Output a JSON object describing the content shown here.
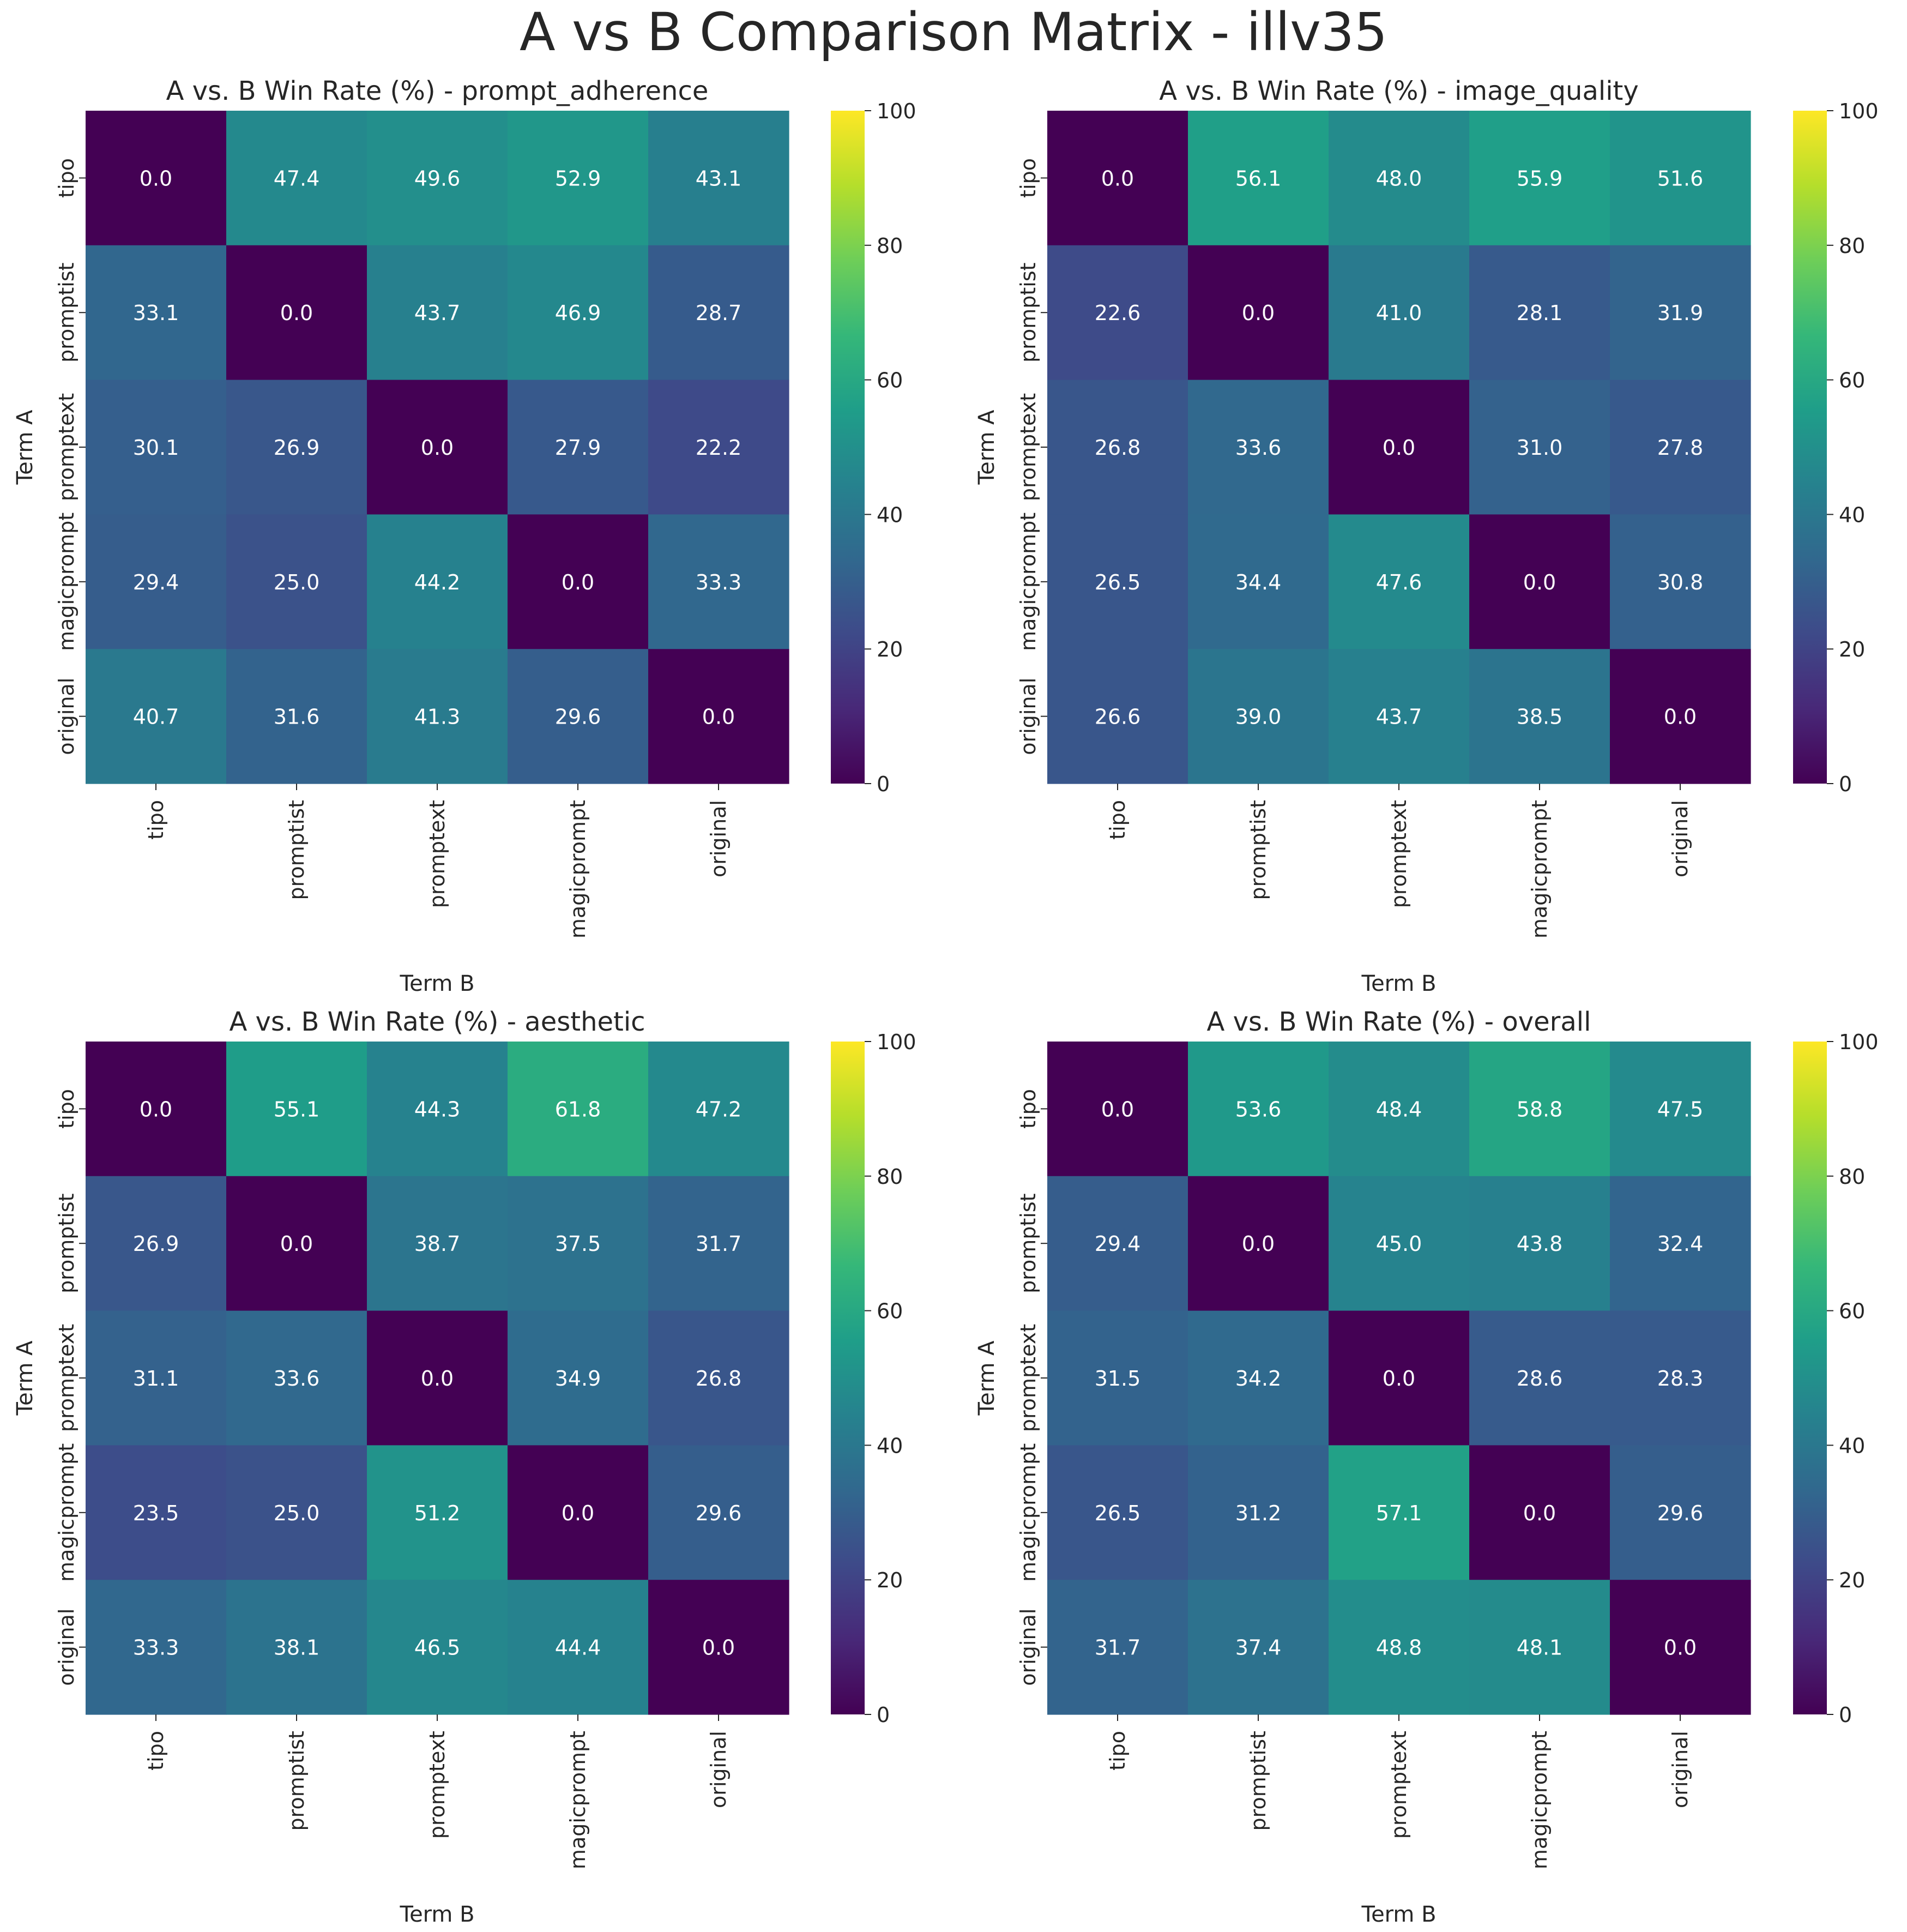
{
  "figure_title": "A vs B Comparison Matrix - illv35",
  "colors": {
    "text": "#262626",
    "cell_text": "#ffffff",
    "colormap": "viridis",
    "viridis_stops": [
      "#440154",
      "#482878",
      "#3e4a89",
      "#31688e",
      "#26828e",
      "#1f9e89",
      "#35b779",
      "#6ece58",
      "#b5de2b",
      "#fde725"
    ]
  },
  "chart_data": [
    {
      "type": "heatmap",
      "title": "A vs. B Win Rate (%) - prompt_adherence",
      "xlabel": "Term B",
      "ylabel": "Term A",
      "row_labels": [
        "tipo",
        "promptist",
        "promptext",
        "magicprompt",
        "original"
      ],
      "col_labels": [
        "tipo",
        "promptist",
        "promptext",
        "magicprompt",
        "original"
      ],
      "values": [
        [
          0.0,
          47.4,
          49.6,
          52.9,
          43.1
        ],
        [
          33.1,
          0.0,
          43.7,
          46.9,
          28.7
        ],
        [
          30.1,
          26.9,
          0.0,
          27.9,
          22.2
        ],
        [
          29.4,
          25.0,
          44.2,
          0.0,
          33.3
        ],
        [
          40.7,
          31.6,
          41.3,
          29.6,
          0.0
        ]
      ],
      "colorbar_range": [
        0,
        100
      ],
      "colorbar_ticks": [
        0,
        20,
        40,
        60,
        80,
        100
      ]
    },
    {
      "type": "heatmap",
      "title": "A vs. B Win Rate (%) - image_quality",
      "xlabel": "Term B",
      "ylabel": "Term A",
      "row_labels": [
        "tipo",
        "promptist",
        "promptext",
        "magicprompt",
        "original"
      ],
      "col_labels": [
        "tipo",
        "promptist",
        "promptext",
        "magicprompt",
        "original"
      ],
      "values": [
        [
          0.0,
          56.1,
          48.0,
          55.9,
          51.6
        ],
        [
          22.6,
          0.0,
          41.0,
          28.1,
          31.9
        ],
        [
          26.8,
          33.6,
          0.0,
          31.0,
          27.8
        ],
        [
          26.5,
          34.4,
          47.6,
          0.0,
          30.8
        ],
        [
          26.6,
          39.0,
          43.7,
          38.5,
          0.0
        ]
      ],
      "colorbar_range": [
        0,
        100
      ],
      "colorbar_ticks": [
        0,
        20,
        40,
        60,
        80,
        100
      ]
    },
    {
      "type": "heatmap",
      "title": "A vs. B Win Rate (%) - aesthetic",
      "xlabel": "Term B",
      "ylabel": "Term A",
      "row_labels": [
        "tipo",
        "promptist",
        "promptext",
        "magicprompt",
        "original"
      ],
      "col_labels": [
        "tipo",
        "promptist",
        "promptext",
        "magicprompt",
        "original"
      ],
      "values": [
        [
          0.0,
          55.1,
          44.3,
          61.8,
          47.2
        ],
        [
          26.9,
          0.0,
          38.7,
          37.5,
          31.7
        ],
        [
          31.1,
          33.6,
          0.0,
          34.9,
          26.8
        ],
        [
          23.5,
          25.0,
          51.2,
          0.0,
          29.6
        ],
        [
          33.3,
          38.1,
          46.5,
          44.4,
          0.0
        ]
      ],
      "colorbar_range": [
        0,
        100
      ],
      "colorbar_ticks": [
        0,
        20,
        40,
        60,
        80,
        100
      ]
    },
    {
      "type": "heatmap",
      "title": "A vs. B Win Rate (%) - overall",
      "xlabel": "Term B",
      "ylabel": "Term A",
      "row_labels": [
        "tipo",
        "promptist",
        "promptext",
        "magicprompt",
        "original"
      ],
      "col_labels": [
        "tipo",
        "promptist",
        "promptext",
        "magicprompt",
        "original"
      ],
      "values": [
        [
          0.0,
          53.6,
          48.4,
          58.8,
          47.5
        ],
        [
          29.4,
          0.0,
          45.0,
          43.8,
          32.4
        ],
        [
          31.5,
          34.2,
          0.0,
          28.6,
          28.3
        ],
        [
          26.5,
          31.2,
          57.1,
          0.0,
          29.6
        ],
        [
          31.7,
          37.4,
          48.8,
          48.1,
          0.0
        ]
      ],
      "colorbar_range": [
        0,
        100
      ],
      "colorbar_ticks": [
        0,
        20,
        40,
        60,
        80,
        100
      ]
    }
  ]
}
